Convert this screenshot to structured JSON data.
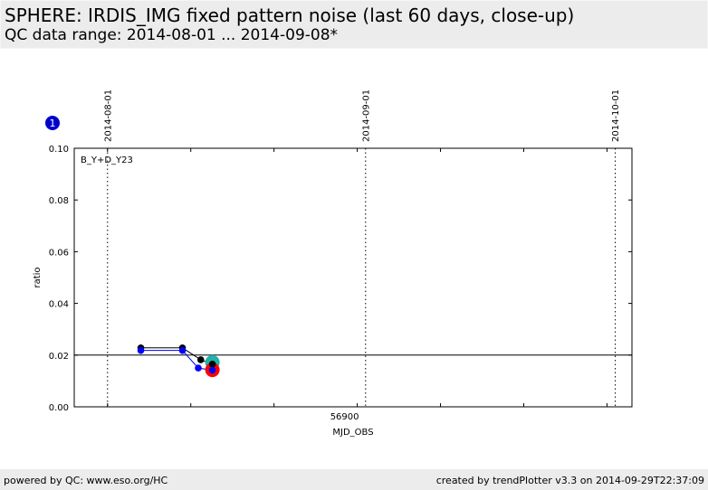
{
  "header": {
    "title": "SPHERE: IRDIS_IMG fixed pattern noise (last 60 days, close-up)",
    "subtitle": "QC data range: 2014-08-01 ... 2014-09-08*"
  },
  "footer": {
    "powered_by": "powered by QC: www.eso.org/HC",
    "created_by": "created by trendPlotter v3.3 on 2014-09-29T22:37:09"
  },
  "panel": {
    "badge": "1",
    "label": "B_Y+D_Y23"
  },
  "colors": {
    "series_black": "#000000",
    "series_blue": "#0000ff",
    "last_cyan": "#20b2aa",
    "last_red": "#ff0000",
    "badge_fill": "#0000cc"
  },
  "chart_data": {
    "type": "scatter",
    "title": "",
    "xlabel": "MJD_OBS",
    "ylabel": "ratio",
    "xlim": [
      56866,
      56933
    ],
    "ylim": [
      0.0,
      0.1
    ],
    "yticks": [
      "0.00",
      "0.02",
      "0.04",
      "0.06",
      "0.08",
      "0.10"
    ],
    "xticks": [
      {
        "value": 56900,
        "label": "56900"
      }
    ],
    "date_markers": [
      {
        "value": 56870,
        "label": "2014-08-01"
      },
      {
        "value": 56901,
        "label": "2014-09-01"
      },
      {
        "value": 56931,
        "label": "2014-10-01"
      }
    ],
    "reference_line": 0.02,
    "series": [
      {
        "color": "black",
        "x": [
          56874,
          56879,
          56881.2,
          56882.6
        ],
        "y": [
          0.0228,
          0.0228,
          0.0182,
          0.0165
        ]
      },
      {
        "color": "blue",
        "x": [
          56874,
          56879,
          56880.9,
          56882.6
        ],
        "y": [
          0.0218,
          0.0218,
          0.015,
          0.0142
        ]
      }
    ],
    "last_points": [
      {
        "color": "cyan",
        "x": 56882.6,
        "y": 0.0172
      },
      {
        "color": "red",
        "x": 56882.6,
        "y": 0.0143
      }
    ]
  }
}
